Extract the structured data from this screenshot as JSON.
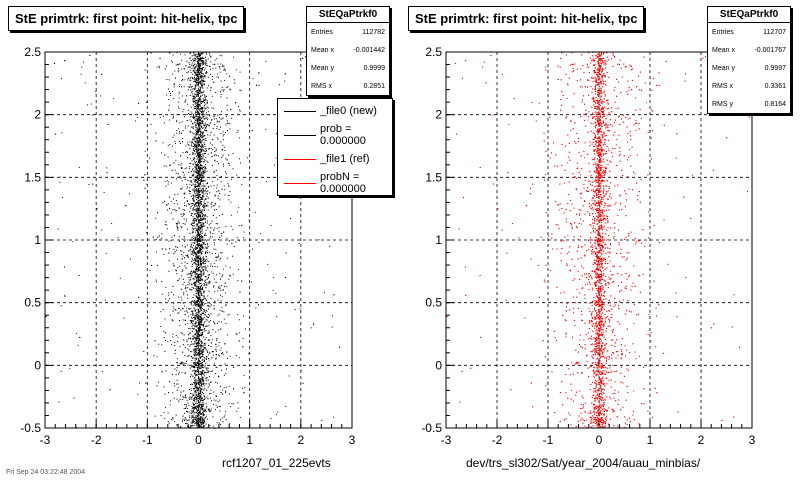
{
  "colors": {
    "file0": "#000000",
    "file1": "#ff0000",
    "grid": "#000000"
  },
  "left_panel": {
    "title": "StE primtrk: first point: hit-helix, tpc",
    "stats": {
      "name": "StEQaPtrkf0",
      "rows": [
        {
          "label": "Entries",
          "value": "112782"
        },
        {
          "label": "Mean x",
          "value": "-0.001442"
        },
        {
          "label": "Mean y",
          "value": "0.9999"
        },
        {
          "label": "RMS x",
          "value": "0.2851"
        }
      ]
    },
    "legend": [
      {
        "label": "_file0 (new)",
        "color": "#000000"
      },
      {
        "label": "prob = 0.000000",
        "color": "#000000"
      },
      {
        "label": "_file1 (ref)",
        "color": "#ff0000"
      },
      {
        "label": "probN = 0.000000",
        "color": "#ff0000"
      }
    ],
    "xlabel": "rcf1207_01_225evts"
  },
  "right_panel": {
    "title": "StE primtrk: first point: hit-helix, tpc",
    "stats": {
      "name": "StEQaPtrkf0",
      "rows": [
        {
          "label": "Entries",
          "value": "112707"
        },
        {
          "label": "Mean x",
          "value": "-0.001767"
        },
        {
          "label": "Mean y",
          "value": "0.9997"
        },
        {
          "label": "RMS x",
          "value": "0.3361"
        },
        {
          "label": "RMS y",
          "value": "0.8164"
        }
      ]
    },
    "xlabel": "dev/trs_sl302/Sat/year_2004/auau_minbias/"
  },
  "footer": "Fri Sep 24 03:22:48 2004",
  "chart_data": [
    {
      "type": "scatter",
      "title": "StE primtrk: first point: hit-helix, tpc",
      "xlim": [
        -3,
        3
      ],
      "ylim": [
        -0.5,
        2.5
      ],
      "xticks": [
        "-3",
        "-2",
        "-1",
        "0",
        "1",
        "2",
        "3"
      ],
      "yticks": [
        "-0.5",
        "0",
        "0.5",
        "1",
        "1.5",
        "2",
        "2.5"
      ],
      "grid": true,
      "series": [
        {
          "name": "_file0 (new)",
          "color": "#000000",
          "x_center": 0.0,
          "x_core_width": 0.15,
          "x_halo_width": 0.35,
          "y_range": [
            -0.5,
            2.5
          ]
        }
      ]
    },
    {
      "type": "scatter",
      "title": "StE primtrk: first point: hit-helix, tpc",
      "xlim": [
        -3,
        3
      ],
      "ylim": [
        -0.5,
        2.5
      ],
      "xticks": [
        "-3",
        "-2",
        "-1",
        "0",
        "1",
        "2",
        "3"
      ],
      "yticks": [
        "-0.5",
        "0",
        "0.5",
        "1",
        "1.5",
        "2",
        "2.5"
      ],
      "grid": true,
      "series": [
        {
          "name": "_file1 (ref)",
          "color": "#ff0000",
          "x_center": 0.0,
          "x_core_width": 0.15,
          "x_halo_width": 0.45,
          "y_range": [
            -0.5,
            2.5
          ]
        }
      ]
    }
  ]
}
